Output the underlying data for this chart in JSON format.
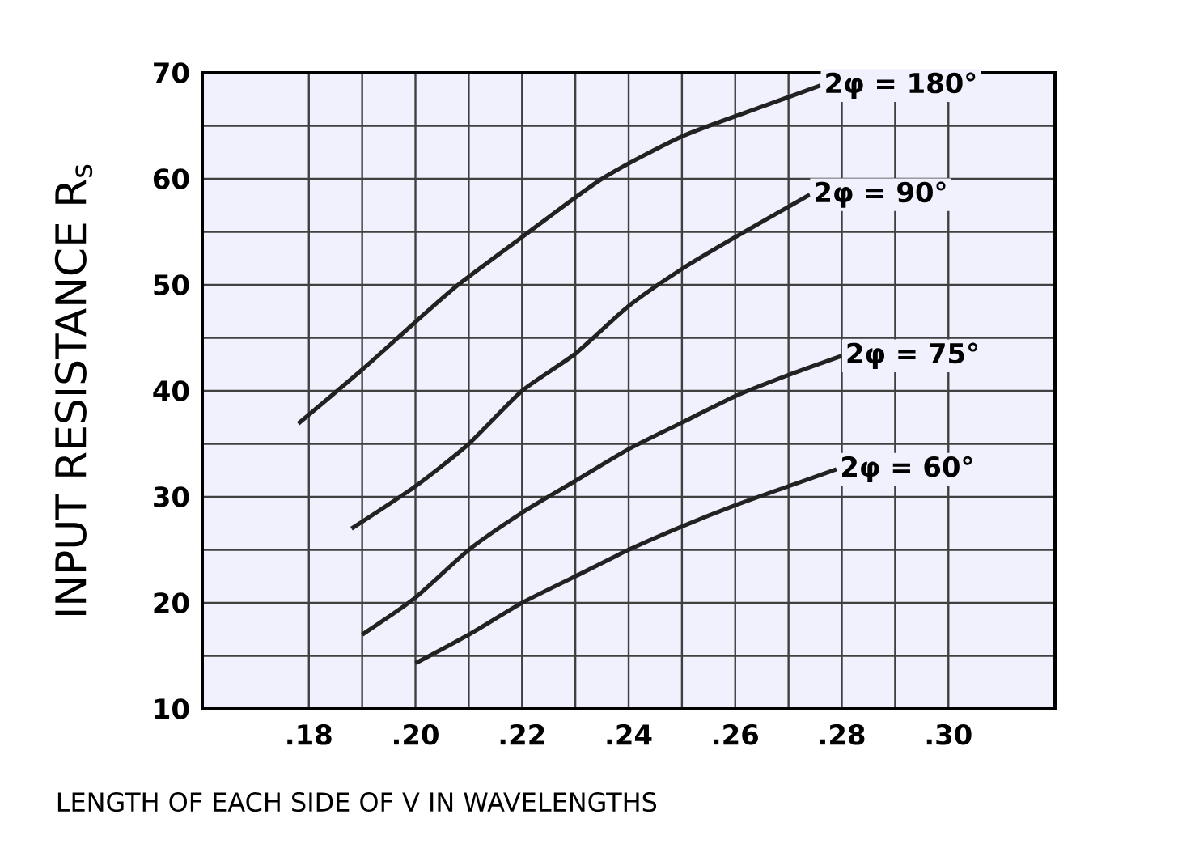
{
  "chart_data": {
    "type": "line",
    "xlabel": "LENGTH OF EACH SIDE OF V IN  WAVELENGTHS",
    "ylabel": "INPUT RESISTANCE  R$_{s}$",
    "xlim": [
      0.16,
      0.32
    ],
    "ylim": [
      10,
      70
    ],
    "xticks": [
      {
        "value": 0.18,
        "label": ".18"
      },
      {
        "value": 0.2,
        "label": ".20"
      },
      {
        "value": 0.22,
        "label": ".22"
      },
      {
        "value": 0.24,
        "label": ".24"
      },
      {
        "value": 0.26,
        "label": ".26"
      },
      {
        "value": 0.28,
        "label": ".28"
      },
      {
        "value": 0.3,
        "label": ".30"
      }
    ],
    "yticks": [
      10,
      20,
      30,
      40,
      50,
      60,
      70
    ],
    "grid": true,
    "legend": false,
    "marker": "none",
    "line_style": "solid",
    "series": [
      {
        "name": "2φ = 180°",
        "color": "#222222",
        "x": [
          0.178,
          0.19,
          0.2,
          0.208,
          0.22,
          0.235,
          0.25,
          0.265,
          0.276
        ],
        "values": [
          36.9,
          42,
          46.5,
          50,
          54.5,
          60,
          64,
          66.8,
          68.8
        ]
      },
      {
        "name": "2φ = 90°",
        "color": "#222222",
        "x": [
          0.188,
          0.2,
          0.21,
          0.22,
          0.23,
          0.24,
          0.25,
          0.26,
          0.274
        ],
        "values": [
          27,
          31,
          35,
          40,
          43.5,
          48,
          51.5,
          54.5,
          58.5
        ]
      },
      {
        "name": "2φ = 75°",
        "color": "#222222",
        "x": [
          0.19,
          0.2,
          0.21,
          0.22,
          0.23,
          0.24,
          0.25,
          0.26,
          0.27,
          0.28
        ],
        "values": [
          17,
          20.5,
          25,
          28.5,
          31.5,
          34.5,
          37,
          39.5,
          41.5,
          43.3
        ]
      },
      {
        "name": "2φ = 60°",
        "color": "#222222",
        "x": [
          0.2,
          0.21,
          0.22,
          0.23,
          0.24,
          0.25,
          0.26,
          0.27,
          0.279
        ],
        "values": [
          14.3,
          17,
          20,
          22.5,
          25,
          27.2,
          29.2,
          31,
          32.6
        ]
      }
    ]
  }
}
